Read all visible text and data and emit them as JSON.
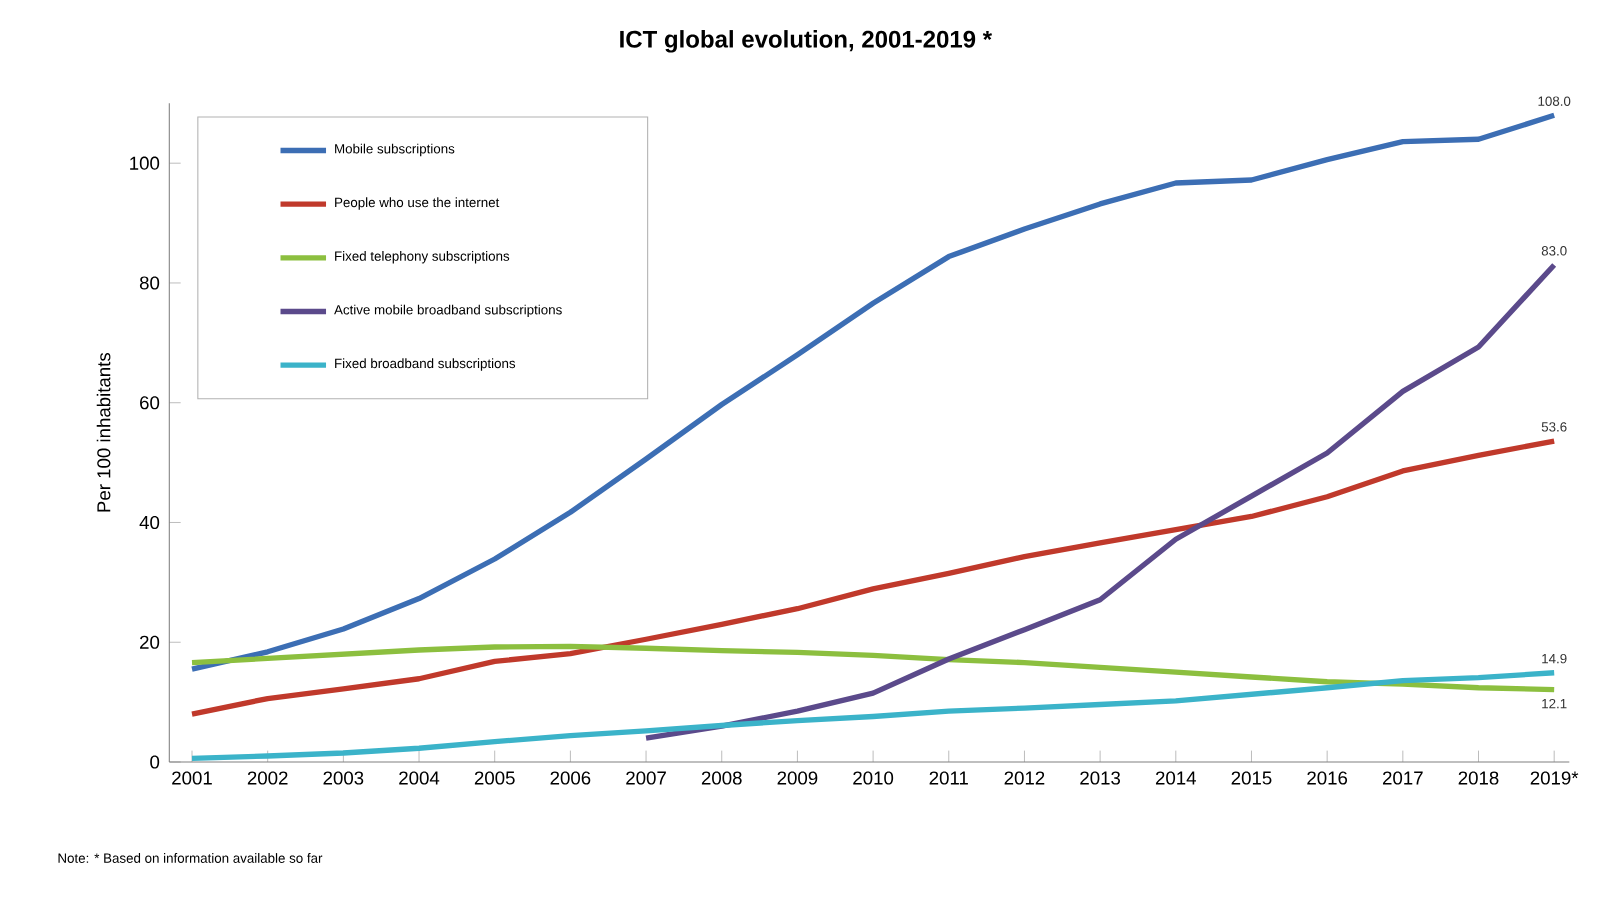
{
  "chart_data": {
    "type": "line",
    "title": "ICT global evolution, 2001-2019 *",
    "ylabel": "Per 100 inhabitants",
    "categories": [
      "2001",
      "2002",
      "2003",
      "2004",
      "2005",
      "2006",
      "2007",
      "2008",
      "2009",
      "2010",
      "2011",
      "2012",
      "2013",
      "2014",
      "2015",
      "2016",
      "2017",
      "2018",
      "2019*"
    ],
    "series": [
      {
        "name": "Mobile subscriptions",
        "color": "#3c6eb4",
        "values": [
          15.5,
          18.4,
          22.2,
          27.3,
          33.9,
          41.7,
          50.6,
          59.7,
          68.0,
          76.6,
          84.4,
          89.0,
          93.2,
          96.7,
          97.2,
          100.6,
          103.6,
          104.0,
          108.0
        ],
        "value_labels": [
          null,
          null,
          null,
          null,
          null,
          null,
          null,
          null,
          null,
          null,
          null,
          null,
          null,
          null,
          null,
          null,
          null,
          null,
          "108.0"
        ]
      },
      {
        "name": "People who use the internet",
        "color": "#c0392b",
        "values": [
          8.0,
          10.6,
          12.2,
          13.9,
          16.8,
          18.1,
          20.5,
          23.0,
          25.6,
          28.9,
          31.5,
          34.3,
          36.6,
          38.8,
          41.0,
          44.3,
          48.6,
          51.2,
          53.6
        ],
        "value_labels": [
          null,
          null,
          null,
          null,
          null,
          null,
          null,
          null,
          null,
          null,
          null,
          null,
          null,
          null,
          null,
          null,
          null,
          null,
          "53.6"
        ]
      },
      {
        "name": "Fixed telephony subscriptions",
        "color": "#8cbf3f",
        "values": [
          16.6,
          17.3,
          18.0,
          18.7,
          19.2,
          19.3,
          19.0,
          18.6,
          18.3,
          17.8,
          17.1,
          16.6,
          15.8,
          15.0,
          14.2,
          13.4,
          13.0,
          12.4,
          12.1
        ],
        "value_labels": [
          null,
          null,
          null,
          null,
          null,
          null,
          null,
          null,
          null,
          null,
          null,
          null,
          null,
          null,
          null,
          null,
          null,
          null,
          "12.1"
        ]
      },
      {
        "name": "Active mobile broadband subscriptions",
        "color": "#5b4a8b",
        "values": [
          null,
          null,
          null,
          null,
          null,
          null,
          4.0,
          6.0,
          8.5,
          11.5,
          17.2,
          22.1,
          27.1,
          37.2,
          44.4,
          51.6,
          61.9,
          69.3,
          83.0
        ],
        "value_labels": [
          null,
          null,
          null,
          null,
          null,
          null,
          null,
          null,
          null,
          null,
          null,
          null,
          null,
          null,
          null,
          null,
          null,
          null,
          "83.0"
        ]
      },
      {
        "name": "Fixed broadband subscriptions",
        "color": "#3bb3c9",
        "values": [
          0.6,
          1.0,
          1.5,
          2.3,
          3.4,
          4.4,
          5.2,
          6.1,
          6.9,
          7.6,
          8.5,
          9.0,
          9.6,
          10.2,
          11.3,
          12.4,
          13.6,
          14.1,
          14.9
        ],
        "value_labels": [
          null,
          null,
          null,
          null,
          null,
          null,
          null,
          null,
          null,
          null,
          null,
          null,
          null,
          null,
          null,
          null,
          null,
          null,
          "14.9"
        ]
      }
    ],
    "ylim": [
      0,
      110
    ],
    "yticks": [
      0,
      20,
      40,
      60,
      80,
      100
    ],
    "grid": false,
    "legend": "top left",
    "marker": "none",
    "line_style": "solid",
    "annotations": [
      "Note: * Based on information available so far"
    ]
  }
}
